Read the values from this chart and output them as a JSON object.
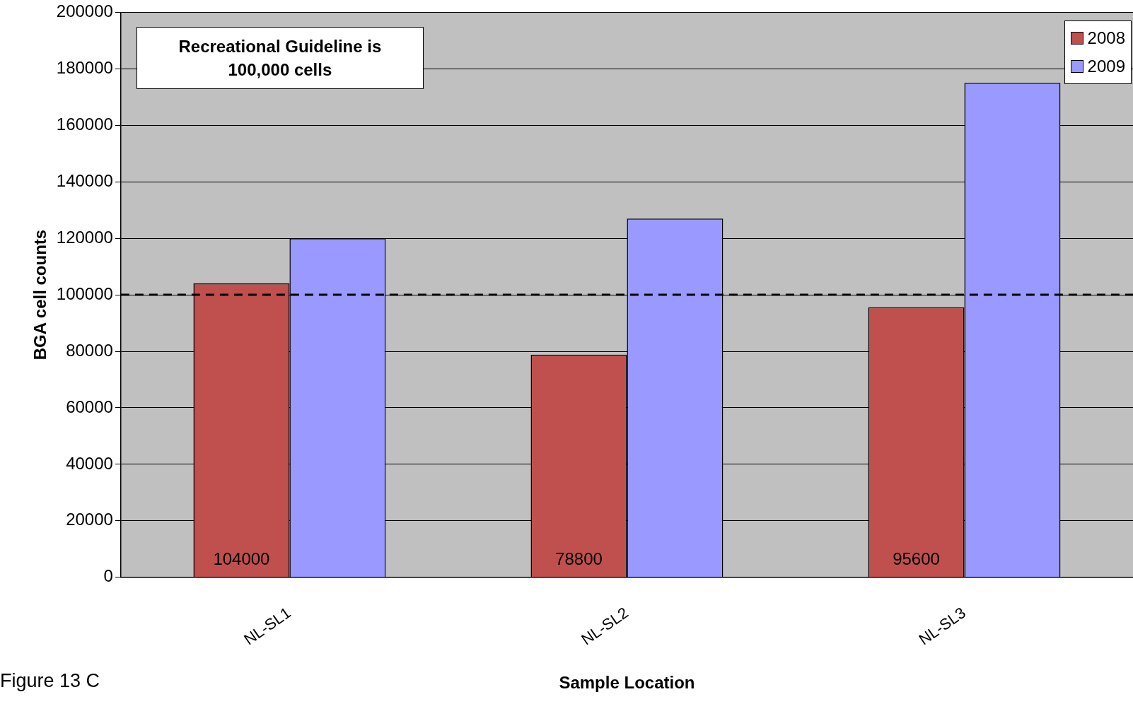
{
  "chart_data": {
    "type": "bar",
    "categories": [
      "NL-SL1",
      "NL-SL2",
      "NL-SL3"
    ],
    "series": [
      {
        "name": "2008",
        "color": "#c0504d",
        "values": [
          104000,
          78800,
          95600
        ],
        "value_labels": [
          "104000",
          "78800",
          "95600"
        ]
      },
      {
        "name": "2009",
        "color": "#9999ff",
        "values": [
          120000,
          127000,
          175000
        ]
      }
    ],
    "xlabel": "Sample Location",
    "ylabel": "BGA cell counts",
    "ylim": [
      0,
      200000
    ],
    "yticks": [
      0,
      20000,
      40000,
      60000,
      80000,
      100000,
      120000,
      140000,
      160000,
      180000,
      200000
    ],
    "grid": "y",
    "legend": "top right",
    "ref_lines": [
      {
        "axis": "y",
        "value": 100000,
        "color": "#000000",
        "line_style": "dashed"
      }
    ],
    "annotations": [
      "Recreational Guideline is 100,000 cells",
      "Figure 13 C"
    ]
  }
}
